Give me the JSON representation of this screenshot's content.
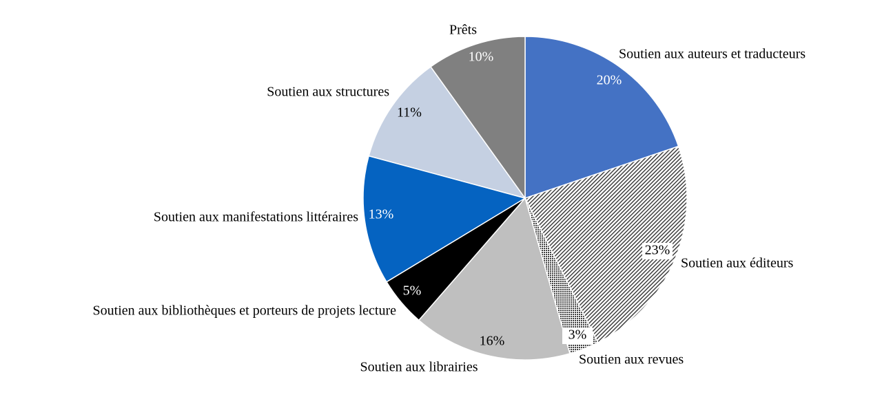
{
  "chart_data": {
    "type": "pie",
    "categories": [
      "Soutien aux auteurs et traducteurs",
      "Soutien aux éditeurs",
      "Soutien aux revues",
      "Soutien aux librairies",
      "Soutien aux bibliothèques et porteurs de projets lecture",
      "Soutien aux manifestations littéraires",
      "Soutien aux structures",
      "Prêts"
    ],
    "values": [
      20,
      23,
      3,
      16,
      5,
      13,
      11,
      10
    ],
    "value_labels": [
      "20%",
      "23%",
      "3%",
      "16%",
      "5%",
      "13%",
      "11%",
      "10%"
    ],
    "colors": [
      "#4472c4",
      "#404040",
      "#404040",
      "#bfbfbf",
      "#000000",
      "#0563c1",
      "#c5d0e2",
      "#808080"
    ],
    "patterns": [
      "solid",
      "hatch",
      "dots",
      "solid",
      "solid",
      "solid",
      "solid",
      "solid"
    ]
  }
}
